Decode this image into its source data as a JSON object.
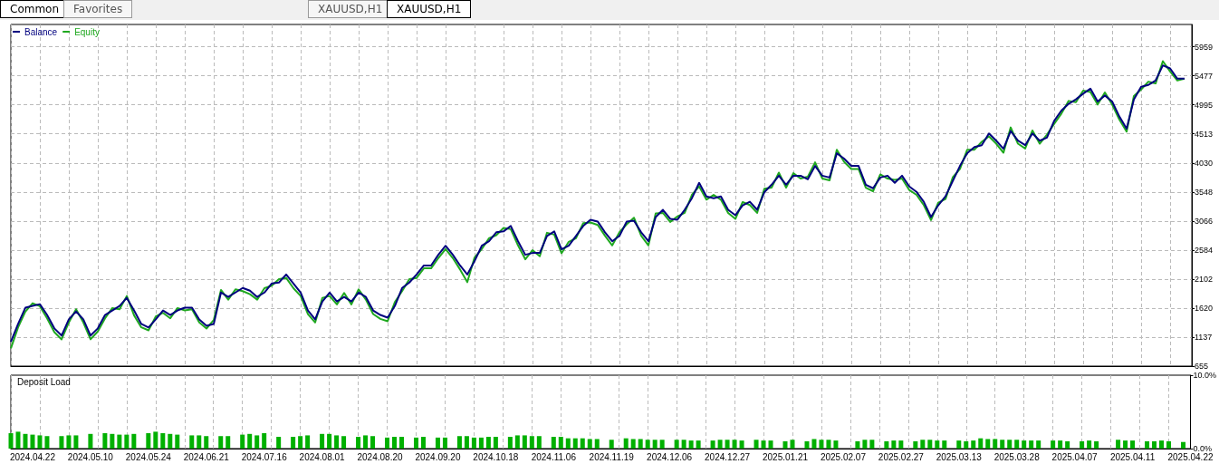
{
  "chart_data": [
    {
      "type": "line",
      "tick_labels": "y",
      "grid": true,
      "legend": "top left",
      "annotations": [
        "Common",
        "Favorites",
        "XAUUSD,H1",
        "XAUUSD,H1"
      ],
      "categories": [
        null,
        null,
        null,
        "2024.04.22",
        null,
        null,
        null,
        null,
        null,
        null,
        null,
        "2024.05.10",
        null,
        null,
        null,
        null,
        null,
        null,
        null,
        "2024.05.24",
        null,
        null,
        null,
        null,
        null,
        null,
        null,
        "2024.06.21",
        null,
        null,
        null,
        null,
        null,
        null,
        null,
        "2024.07.16",
        null,
        null,
        null,
        null,
        null,
        null,
        null,
        "2024.08.01",
        null,
        null,
        null,
        null,
        null,
        null,
        null,
        "2024.08.20",
        null,
        null,
        null,
        null,
        null,
        null,
        null,
        "2024.09.20",
        null,
        null,
        null,
        null,
        null,
        null,
        null,
        "2024.10.18",
        null,
        null,
        null,
        null,
        null,
        null,
        null,
        "2024.11.06",
        null,
        null,
        null,
        null,
        null,
        null,
        null,
        "2024.11.19",
        null,
        null,
        null,
        null,
        null,
        null,
        null,
        "2024.12.06",
        null,
        null,
        null,
        null,
        null,
        null,
        null,
        "2024.12.27",
        null,
        null,
        null,
        null,
        null,
        null,
        null,
        "2025.01.21",
        null,
        null,
        null,
        null,
        null,
        null,
        null,
        "2025.02.07",
        null,
        null,
        null,
        null,
        null,
        null,
        null,
        "2025.02.27",
        null,
        null,
        null,
        null,
        null,
        null,
        null,
        "2025.03.13",
        null,
        null,
        null,
        null,
        null,
        null,
        null,
        "2025.03.28",
        null,
        null,
        null,
        null,
        null,
        null,
        null,
        "2025.04.07",
        null,
        null,
        null,
        null,
        null,
        null,
        null,
        "2025.04.11",
        null,
        null,
        null,
        null,
        null,
        null,
        null,
        "2025.04.22"
      ],
      "ylim": [
        655,
        6330
      ],
      "yticks": [
        655,
        1137,
        1620,
        2102,
        2584,
        3066,
        3548,
        4030,
        4513,
        4995,
        5477,
        5959
      ],
      "series": [
        {
          "name": "Equity",
          "color": "#1fa81f",
          "values": [
            950,
            1300,
            1560,
            1700,
            1650,
            1450,
            1220,
            1100,
            1380,
            1600,
            1380,
            1100,
            1230,
            1450,
            1620,
            1600,
            1820,
            1500,
            1300,
            1250,
            1480,
            1540,
            1450,
            1620,
            1580,
            1600,
            1380,
            1280,
            1420,
            1920,
            1760,
            1930,
            1900,
            1850,
            1760,
            1950,
            1990,
            2100,
            2120,
            1950,
            1820,
            1520,
            1380,
            1790,
            1820,
            1680,
            1870,
            1680,
            1930,
            1760,
            1520,
            1440,
            1400,
            1720,
            1900,
            2100,
            2120,
            2280,
            2280,
            2450,
            2600,
            2450,
            2260,
            2050,
            2460,
            2600,
            2780,
            2830,
            2950,
            2930,
            2660,
            2430,
            2580,
            2480,
            2870,
            2840,
            2530,
            2720,
            2780,
            3030,
            3040,
            3000,
            2820,
            2660,
            2880,
            3010,
            3120,
            2820,
            2660,
            3190,
            3200,
            3050,
            3140,
            3200,
            3500,
            3640,
            3420,
            3500,
            3420,
            3200,
            3100,
            3380,
            3330,
            3200,
            3600,
            3620,
            3870,
            3620,
            3860,
            3770,
            3800,
            4040,
            3770,
            3740,
            4250,
            4050,
            3930,
            3930,
            3620,
            3560,
            3840,
            3770,
            3750,
            3770,
            3580,
            3500,
            3330,
            3080,
            3370,
            3430,
            3790,
            3930,
            4250,
            4250,
            4380,
            4470,
            4350,
            4200,
            4620,
            4350,
            4270,
            4570,
            4350,
            4500,
            4680,
            4850,
            5060,
            5040,
            5230,
            5210,
            5000,
            5200,
            5000,
            4750,
            4550,
            5140,
            5250,
            5380,
            5350,
            5720,
            5550,
            5400,
            5429,
            null
          ]
        },
        {
          "name": "Balance",
          "color": "#00007f",
          "values": [
            1058,
            1356,
            1625,
            1655,
            1684,
            1505,
            1282,
            1162,
            1431,
            1565,
            1431,
            1162,
            1282,
            1505,
            1580,
            1655,
            1789,
            1580,
            1356,
            1297,
            1431,
            1580,
            1505,
            1580,
            1625,
            1625,
            1431,
            1326,
            1356,
            1878,
            1804,
            1878,
            1953,
            1908,
            1804,
            1878,
            2028,
            2043,
            2177,
            2028,
            1878,
            1580,
            1431,
            1729,
            1878,
            1729,
            1804,
            1729,
            1878,
            1804,
            1580,
            1505,
            1461,
            1655,
            1953,
            2043,
            2177,
            2326,
            2326,
            2505,
            2654,
            2505,
            2326,
            2177,
            2401,
            2654,
            2729,
            2878,
            2893,
            2983,
            2729,
            2505,
            2535,
            2535,
            2818,
            2893,
            2595,
            2654,
            2818,
            2983,
            3087,
            3057,
            2878,
            2729,
            2818,
            3057,
            3072,
            2878,
            2729,
            3132,
            3251,
            3102,
            3087,
            3251,
            3445,
            3699,
            3475,
            3445,
            3475,
            3251,
            3162,
            3326,
            3385,
            3251,
            3545,
            3669,
            3818,
            3669,
            3818,
            3818,
            3759,
            3980,
            3818,
            3788,
            4191,
            4102,
            3980,
            3980,
            3669,
            3609,
            3788,
            3818,
            3699,
            3818,
            3640,
            3550,
            3385,
            3132,
            3326,
            3475,
            3729,
            3980,
            4191,
            4295,
            4325,
            4519,
            4400,
            4266,
            4560,
            4400,
            4325,
            4519,
            4400,
            4450,
            4728,
            4900,
            5012,
            5086,
            5180,
            5265,
            5050,
            5150,
            5050,
            4800,
            4600,
            5086,
            5295,
            5325,
            5400,
            5650,
            5600,
            5429,
            5429,
            null
          ]
        }
      ]
    },
    {
      "type": "bar",
      "title": "Deposit Load",
      "grid": "x",
      "color": "#00b000",
      "categories": [
        null,
        null,
        null,
        "2024.04.22",
        null,
        null,
        null,
        null,
        null,
        null,
        null,
        "2024.05.10",
        null,
        null,
        null,
        null,
        null,
        null,
        null,
        "2024.05.24",
        null,
        null,
        null,
        null,
        null,
        null,
        null,
        "2024.06.21",
        null,
        null,
        null,
        null,
        null,
        null,
        null,
        "2024.07.16",
        null,
        null,
        null,
        null,
        null,
        null,
        null,
        "2024.08.01",
        null,
        null,
        null,
        null,
        null,
        null,
        null,
        "2024.08.20",
        null,
        null,
        null,
        null,
        null,
        null,
        null,
        "2024.09.20",
        null,
        null,
        null,
        null,
        null,
        null,
        null,
        "2024.10.18",
        null,
        null,
        null,
        null,
        null,
        null,
        null,
        "2024.11.06",
        null,
        null,
        null,
        null,
        null,
        null,
        null,
        "2024.11.19",
        null,
        null,
        null,
        null,
        null,
        null,
        null,
        "2024.12.06",
        null,
        null,
        null,
        null,
        null,
        null,
        null,
        "2024.12.27",
        null,
        null,
        null,
        null,
        null,
        null,
        null,
        "2025.01.21",
        null,
        null,
        null,
        null,
        null,
        null,
        null,
        "2025.02.07",
        null,
        null,
        null,
        null,
        null,
        null,
        null,
        "2025.02.27",
        null,
        null,
        null,
        null,
        null,
        null,
        null,
        "2025.03.13",
        null,
        null,
        null,
        null,
        null,
        null,
        null,
        "2025.03.28",
        null,
        null,
        null,
        null,
        null,
        null,
        null,
        "2025.04.07",
        null,
        null,
        null,
        null,
        null,
        null,
        null,
        "2025.04.11",
        null,
        null,
        null,
        null,
        null,
        null,
        null,
        "2025.04.22"
      ],
      "ylim": [
        0,
        10
      ],
      "yticks": [
        {
          "value": 0,
          "label": "0.0%"
        },
        {
          "value": 10,
          "label": "10.0%"
        }
      ],
      "values": [
        2.1,
        2.3,
        2.0,
        1.9,
        1.8,
        1.7,
        null,
        1.7,
        1.8,
        1.8,
        null,
        2.0,
        null,
        2.1,
        2.0,
        1.9,
        1.9,
        2.0,
        null,
        2.1,
        2.3,
        2.1,
        2.0,
        1.9,
        null,
        1.8,
        1.8,
        1.7,
        null,
        1.7,
        1.7,
        null,
        1.9,
        2.0,
        1.8,
        2.1,
        null,
        1.6,
        null,
        1.6,
        1.7,
        1.8,
        null,
        2.0,
        2.0,
        1.8,
        1.7,
        null,
        1.6,
        1.8,
        1.7,
        null,
        1.5,
        1.6,
        1.6,
        null,
        1.5,
        1.6,
        null,
        1.5,
        1.5,
        null,
        1.7,
        1.7,
        1.5,
        1.5,
        1.6,
        1.6,
        null,
        1.6,
        1.8,
        1.8,
        1.7,
        1.7,
        null,
        1.6,
        1.6,
        1.4,
        1.4,
        1.4,
        1.3,
        1.3,
        null,
        1.2,
        null,
        1.4,
        1.3,
        1.3,
        1.2,
        1.2,
        1.2,
        null,
        1.2,
        1.2,
        1.1,
        1.1,
        null,
        1.1,
        1.2,
        1.2,
        1.2,
        1.1,
        null,
        1.2,
        1.1,
        1.1,
        null,
        1.0,
        1.2,
        null,
        1.0,
        1.3,
        1.2,
        1.2,
        1.1,
        null,
        null,
        1.0,
        1.2,
        1.2,
        null,
        1.0,
        1.1,
        1.1,
        null,
        1.0,
        1.2,
        1.2,
        1.1,
        1.1,
        null,
        1.1,
        1.0,
        1.1,
        1.4,
        1.3,
        1.3,
        1.2,
        1.2,
        1.2,
        1.1,
        1.1,
        1.1,
        null,
        1.1,
        1.1,
        1.0,
        null,
        1.0,
        1.1,
        1.0,
        null,
        null,
        1.2,
        1.1,
        1.1,
        null,
        1.0,
        1.0,
        1.1,
        1.0,
        null,
        0.9,
        null
      ]
    }
  ]
}
